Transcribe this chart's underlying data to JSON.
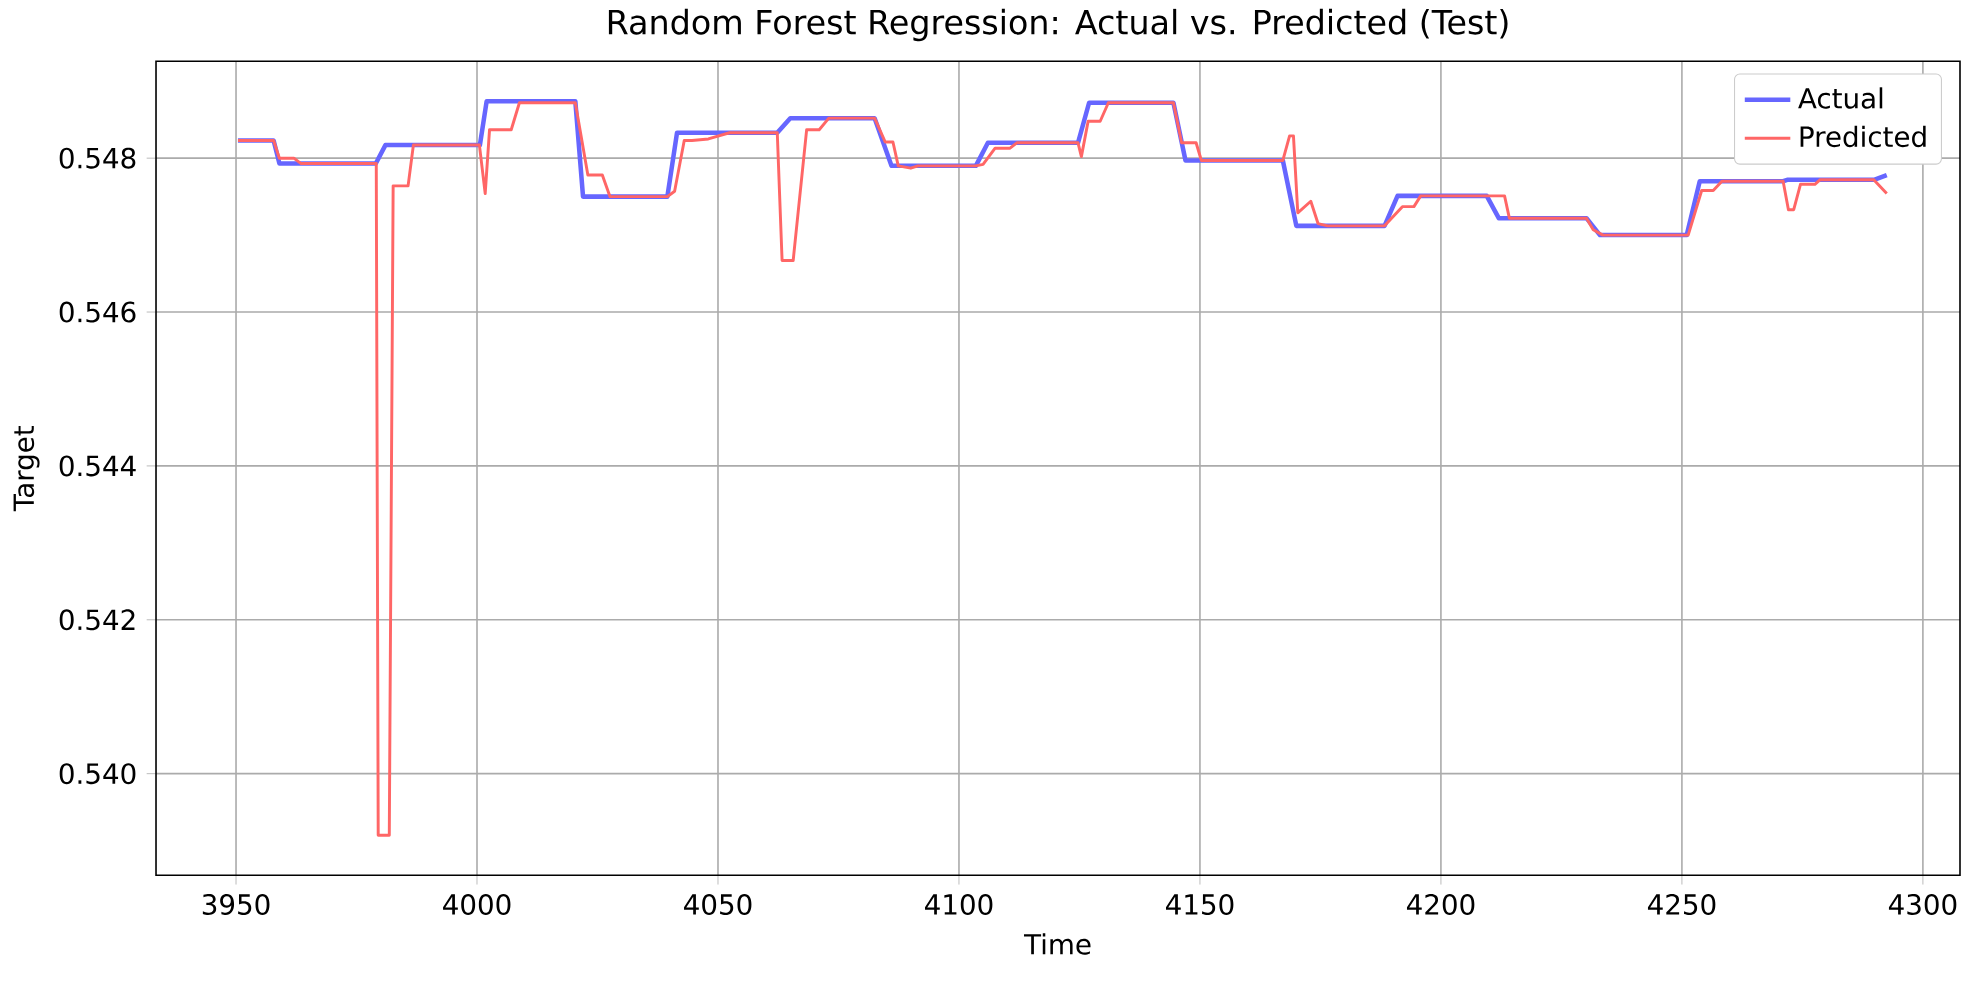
{
  "chart_data": {
    "type": "line",
    "title": "Random Forest Regression: Actual vs. Predicted (Test)",
    "xlabel": "Time",
    "ylabel": "Target",
    "xlim": [
      3933.4,
      4307.7
    ],
    "ylim": [
      0.53868,
      0.54926
    ],
    "xticks": [
      3950,
      4000,
      4050,
      4100,
      4150,
      4200,
      4250,
      4300
    ],
    "yticks": [
      {
        "value": 0.54,
        "label": "0.540"
      },
      {
        "value": 0.542,
        "label": "0.542"
      },
      {
        "value": 0.544,
        "label": "0.544"
      },
      {
        "value": 0.546,
        "label": "0.546"
      },
      {
        "value": 0.548,
        "label": "0.548"
      }
    ],
    "grid": true,
    "legend": "top right",
    "series": [
      {
        "name": "Actual",
        "color": "#6666ff",
        "x": [
          3950.4,
          3957.8,
          3959,
          3979,
          3981,
          4000.6,
          4002,
          4020.4,
          4022,
          4039.5,
          4041.5,
          4062.3,
          4065,
          4082.5,
          4086,
          4103.5,
          4106,
          4124.7,
          4127,
          4144.5,
          4147,
          4167.2,
          4170,
          4188.3,
          4191,
          4209.5,
          4212,
          4230.2,
          4233,
          4251,
          4253.7,
          4271,
          4272,
          4290,
          4292.5
        ],
        "values": [
          0.54823,
          0.54823,
          0.54793,
          0.54793,
          0.54817,
          0.54817,
          0.54874,
          0.54874,
          0.5475,
          0.5475,
          0.54833,
          0.54833,
          0.54852,
          0.54852,
          0.5479,
          0.5479,
          0.5482,
          0.5482,
          0.54872,
          0.54872,
          0.54797,
          0.54797,
          0.54712,
          0.54712,
          0.54751,
          0.54751,
          0.54722,
          0.54722,
          0.547,
          0.547,
          0.5477,
          0.5477,
          0.54772,
          0.54772,
          0.54778
        ]
      },
      {
        "name": "Predicted",
        "color": "#ff6666",
        "x": [
          3950.4,
          3957.8,
          3959,
          3962,
          3963.5,
          3979.1,
          3979.5,
          3981.8,
          3982.6,
          3985.7,
          3986.8,
          4000.5,
          4001.7,
          4002.6,
          4007.1,
          4008.8,
          4020.4,
          4023,
          4026,
          4027.6,
          4039.5,
          4041,
          4043,
          4044.6,
          4048,
          4052.4,
          4062.3,
          4063.3,
          4065.6,
          4068.4,
          4071,
          4073,
          4082.5,
          4084.7,
          4086.3,
          4087.4,
          4090,
          4091.5,
          4103.5,
          4105,
          4107.5,
          4110.6,
          4112,
          4124.7,
          4125.4,
          4126.8,
          4129.3,
          4131,
          4144.5,
          4146.2,
          4149.2,
          4150.3,
          4167.2,
          4168.6,
          4169.4,
          4170.3,
          4173,
          4174.5,
          4176.5,
          4188.3,
          4192,
          4194.4,
          4195.8,
          4213.2,
          4214.2,
          4230.2,
          4231.6,
          4233.6,
          4251.3,
          4254.1,
          4256.5,
          4258.3,
          4271,
          4272.1,
          4273.2,
          4274.6,
          4277.6,
          4278.7,
          4289.8,
          4292.5
        ],
        "values": [
          0.54823,
          0.54823,
          0.548,
          0.548,
          0.54793,
          0.54793,
          0.5392,
          0.5392,
          0.54764,
          0.54764,
          0.54817,
          0.54817,
          0.54754,
          0.54837,
          0.54837,
          0.54872,
          0.54872,
          0.54778,
          0.54778,
          0.5475,
          0.5475,
          0.54757,
          0.54823,
          0.54823,
          0.54825,
          0.54833,
          0.54833,
          0.54667,
          0.54667,
          0.54837,
          0.54837,
          0.54852,
          0.54852,
          0.54821,
          0.54821,
          0.5479,
          0.54787,
          0.5479,
          0.5479,
          0.54792,
          0.54813,
          0.54813,
          0.5482,
          0.5482,
          0.54802,
          0.54848,
          0.54848,
          0.54872,
          0.54872,
          0.5482,
          0.5482,
          0.54797,
          0.54797,
          0.54829,
          0.54829,
          0.54729,
          0.54744,
          0.54715,
          0.54712,
          0.54712,
          0.54737,
          0.54737,
          0.54751,
          0.54751,
          0.54722,
          0.54722,
          0.54707,
          0.547,
          0.547,
          0.54758,
          0.54758,
          0.5477,
          0.5477,
          0.54733,
          0.54733,
          0.54766,
          0.54766,
          0.54772,
          0.54772,
          0.54754
        ]
      }
    ]
  }
}
